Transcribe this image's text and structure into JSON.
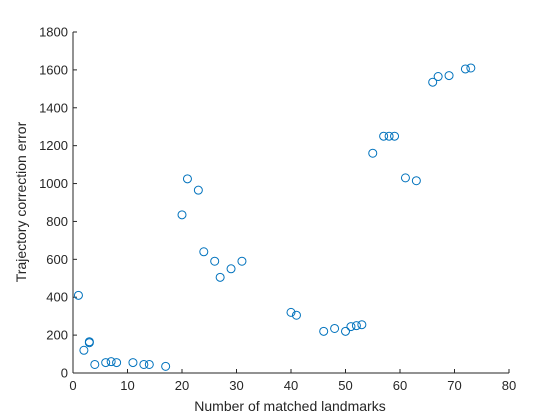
{
  "chart_data": {
    "type": "scatter",
    "title": "",
    "xlabel": "Number of matched landmarks",
    "ylabel": "Trajectory correction error",
    "xlim": [
      0,
      80
    ],
    "ylim": [
      0,
      1800
    ],
    "xticks": [
      0,
      10,
      20,
      30,
      40,
      50,
      60,
      70,
      80
    ],
    "yticks": [
      0,
      200,
      400,
      600,
      800,
      1000,
      1200,
      1400,
      1600,
      1800
    ],
    "grid": false,
    "marker": "circle",
    "color": "#0072BD",
    "series": [
      {
        "points": [
          [
            1,
            410
          ],
          [
            2,
            120
          ],
          [
            3,
            160
          ],
          [
            3,
            165
          ],
          [
            4,
            45
          ],
          [
            6,
            55
          ],
          [
            7,
            60
          ],
          [
            8,
            55
          ],
          [
            11,
            55
          ],
          [
            13,
            45
          ],
          [
            14,
            45
          ],
          [
            17,
            35
          ],
          [
            20,
            835
          ],
          [
            21,
            1025
          ],
          [
            23,
            965
          ],
          [
            24,
            640
          ],
          [
            26,
            590
          ],
          [
            27,
            505
          ],
          [
            29,
            550
          ],
          [
            31,
            590
          ],
          [
            40,
            320
          ],
          [
            41,
            305
          ],
          [
            46,
            220
          ],
          [
            48,
            235
          ],
          [
            50,
            220
          ],
          [
            51,
            245
          ],
          [
            52,
            250
          ],
          [
            53,
            255
          ],
          [
            55,
            1160
          ],
          [
            57,
            1250
          ],
          [
            58,
            1250
          ],
          [
            59,
            1250
          ],
          [
            61,
            1030
          ],
          [
            63,
            1015
          ],
          [
            66,
            1535
          ],
          [
            67,
            1565
          ],
          [
            69,
            1570
          ],
          [
            72,
            1605
          ],
          [
            73,
            1610
          ]
        ]
      }
    ]
  }
}
